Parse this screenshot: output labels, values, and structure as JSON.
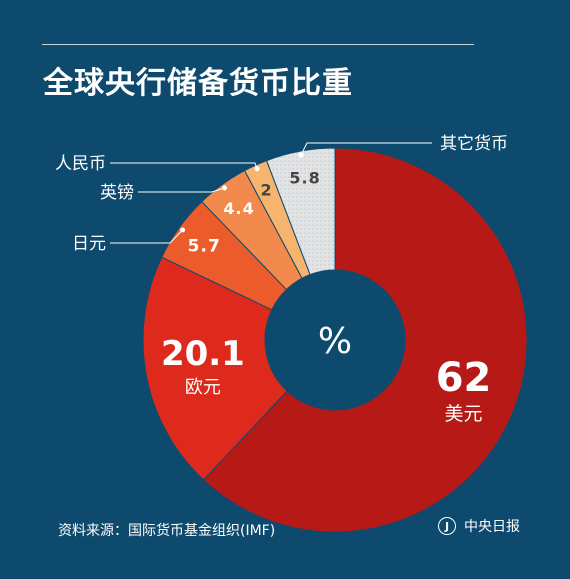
{
  "title": "全球央行储备货币比重",
  "source": "资料来源：国际货币基金组织(IMF)",
  "brand": {
    "name": "中央日报",
    "icon": "newspaper-logo-icon",
    "icon_glyph": "J"
  },
  "chart_data": {
    "type": "pie",
    "center_label": "%",
    "slices": [
      {
        "name": "美元",
        "value": 62,
        "value_label": "62",
        "color": "#b71916"
      },
      {
        "name": "欧元",
        "value": 20.1,
        "value_label": "20.1",
        "color": "#dd2a1c"
      },
      {
        "name": "日元",
        "value": 5.7,
        "value_label": "5.7",
        "color": "#ec5b2b"
      },
      {
        "name": "英镑",
        "value": 4.4,
        "value_label": "4.4",
        "color": "#f28a4d"
      },
      {
        "name": "人民币",
        "value": 2,
        "value_label": "2",
        "color": "#f6b46e"
      },
      {
        "name": "其它货币",
        "value": 5.8,
        "value_label": "5.8",
        "color": "#e2e3e5"
      }
    ]
  }
}
